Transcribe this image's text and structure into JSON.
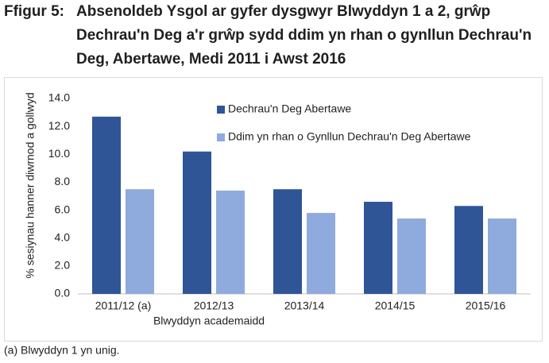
{
  "chart_data": {
    "type": "bar",
    "figure_label": "Ffigur 5:",
    "title": "Absenoldeb Ysgol ar gyfer dysgwyr Blwyddyn 1 a 2, grŵp Dechrau'n Deg a'r grŵp sydd ddim yn rhan o gynllun Dechrau'n Deg, Abertawe, Medi 2011 i Awst 2016",
    "categories": [
      "2011/12 (a)",
      "2012/13",
      "2013/14",
      "2014/15",
      "2015/16"
    ],
    "series": [
      {
        "name": "Dechrau'n Deg Abertawe",
        "color": "#2f5597",
        "values": [
          12.7,
          10.2,
          7.5,
          6.6,
          6.3
        ]
      },
      {
        "name": "Ddim yn rhan o Gynllun Dechrau'n Deg Abertawe",
        "color": "#8faadc",
        "values": [
          7.5,
          7.4,
          5.8,
          5.4,
          5.4
        ]
      }
    ],
    "ylim": [
      0,
      14
    ],
    "yticks": [
      {
        "value": 0,
        "label": "0.0"
      },
      {
        "value": 2,
        "label": "2.0"
      },
      {
        "value": 4,
        "label": "4.0"
      },
      {
        "value": 6,
        "label": "6.0"
      },
      {
        "value": 8,
        "label": "8.0"
      },
      {
        "value": 10,
        "label": "10.0"
      },
      {
        "value": 12,
        "label": "12.0"
      },
      {
        "value": 14,
        "label": "14.0"
      }
    ],
    "ylabel": "% sesiynau hanner diwrnod a gollwyd",
    "xlabel": "Blwyddyn academaidd",
    "note": "(a) Blwyddyn 1 yn unig.",
    "grid": false,
    "legend": "top-right"
  }
}
